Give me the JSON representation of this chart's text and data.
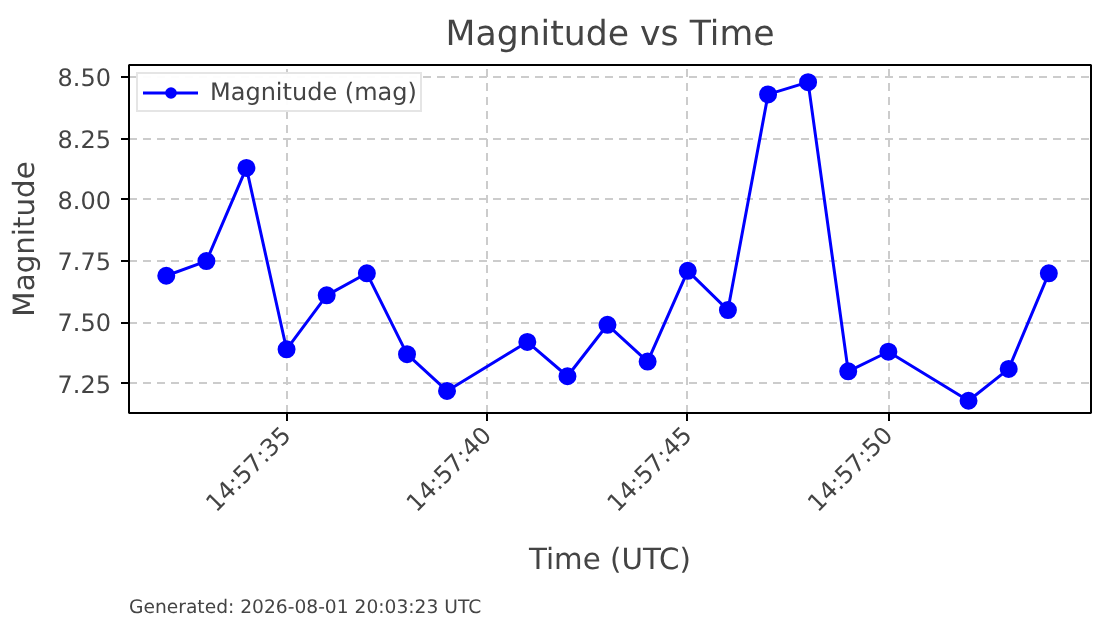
{
  "chart_data": {
    "type": "line",
    "title": "Magnitude vs Time",
    "xlabel": "Time (UTC)",
    "ylabel": "Magnitude",
    "annotations": [
      "Generated: 2026-08-01 20:03:23 UTC"
    ],
    "x": [
      14.958889,
      14.959167,
      14.959444,
      14.959722,
      14.96,
      14.960278,
      14.960556,
      14.960833,
      14.961389,
      14.961667,
      14.961944,
      14.962222,
      14.9625,
      14.962778,
      14.963056,
      14.963333,
      14.963611,
      14.963889,
      14.964444,
      14.964722,
      14.965
    ],
    "series": [
      {
        "name": "Magnitude (mag)",
        "color": "#0000ff",
        "values": [
          7.69,
          7.75,
          8.13,
          7.39,
          7.61,
          7.7,
          7.37,
          7.22,
          7.42,
          7.28,
          7.49,
          7.34,
          7.71,
          7.55,
          8.43,
          8.48,
          7.3,
          7.38,
          7.18,
          7.31,
          7.7
        ]
      }
    ],
    "xlim": [
      14.958631,
      14.965292
    ],
    "ylim": [
      7.13,
      8.55
    ],
    "xticks": [
      {
        "value": 14.959722,
        "label": "14:57:35"
      },
      {
        "value": 14.961111,
        "label": "14:57:40"
      },
      {
        "value": 14.9625,
        "label": "14:57:45"
      },
      {
        "value": 14.963889,
        "label": "14:57:50"
      }
    ],
    "yticks": [
      {
        "value": 7.25,
        "label": "7.25"
      },
      {
        "value": 7.5,
        "label": "7.50"
      },
      {
        "value": 7.75,
        "label": "7.75"
      },
      {
        "value": 8.0,
        "label": "8.00"
      },
      {
        "value": 8.25,
        "label": "8.25"
      },
      {
        "value": 8.5,
        "label": "8.50"
      }
    ],
    "grid": true,
    "legend": "top left",
    "marker": "circle",
    "line_style": "solid"
  }
}
